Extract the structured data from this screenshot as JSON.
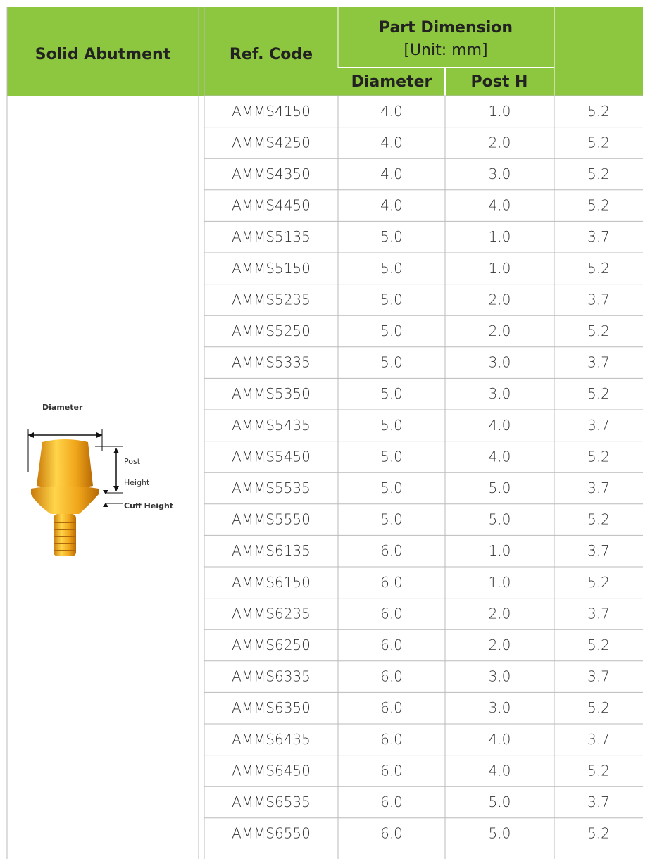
{
  "header": {
    "product": "Solid Abutment",
    "ref_code": "Ref. Code",
    "part_dimension": [
      "Part Dimension",
      "[Unit: mm]"
    ],
    "diameter": "Diameter",
    "post_h": "Post H"
  },
  "illustration": {
    "diameter": "Diameter",
    "post": "Post",
    "height": "Height",
    "cuff_height": "Cuff Height"
  },
  "table": {
    "rows": [
      [
        "AMMS4150",
        "4.0",
        "1.0",
        "5.2"
      ],
      [
        "AMMS4250",
        "4.0",
        "2.0",
        "5.2"
      ],
      [
        "AMMS4350",
        "4.0",
        "3.0",
        "5.2"
      ],
      [
        "AMMS4450",
        "4.0",
        "4.0",
        "5.2"
      ],
      [
        "AMMS5135",
        "5.0",
        "1.0",
        "3.7"
      ],
      [
        "AMMS5150",
        "5.0",
        "1.0",
        "5.2"
      ],
      [
        "AMMS5235",
        "5.0",
        "2.0",
        "3.7"
      ],
      [
        "AMMS5250",
        "5.0",
        "2.0",
        "5.2"
      ],
      [
        "AMMS5335",
        "5.0",
        "3.0",
        "3.7"
      ],
      [
        "AMMS5350",
        "5.0",
        "3.0",
        "5.2"
      ],
      [
        "AMMS5435",
        "5.0",
        "4.0",
        "3.7"
      ],
      [
        "AMMS5450",
        "5.0",
        "4.0",
        "5.2"
      ],
      [
        "AMMS5535",
        "5.0",
        "5.0",
        "3.7"
      ],
      [
        "AMMS5550",
        "5.0",
        "5.0",
        "5.2"
      ],
      [
        "AMMS6135",
        "6.0",
        "1.0",
        "3.7"
      ],
      [
        "AMMS6150",
        "6.0",
        "1.0",
        "5.2"
      ],
      [
        "AMMS6235",
        "6.0",
        "2.0",
        "3.7"
      ],
      [
        "AMMS6250",
        "6.0",
        "2.0",
        "5.2"
      ],
      [
        "AMMS6335",
        "6.0",
        "3.0",
        "3.7"
      ],
      [
        "AMMS6350",
        "6.0",
        "3.0",
        "5.2"
      ],
      [
        "AMMS6435",
        "6.0",
        "4.0",
        "3.7"
      ],
      [
        "AMMS6450",
        "6.0",
        "4.0",
        "5.2"
      ],
      [
        "AMMS6535",
        "6.0",
        "5.0",
        "3.7"
      ],
      [
        "AMMS6550",
        "6.0",
        "5.0",
        "5.2"
      ]
    ]
  }
}
